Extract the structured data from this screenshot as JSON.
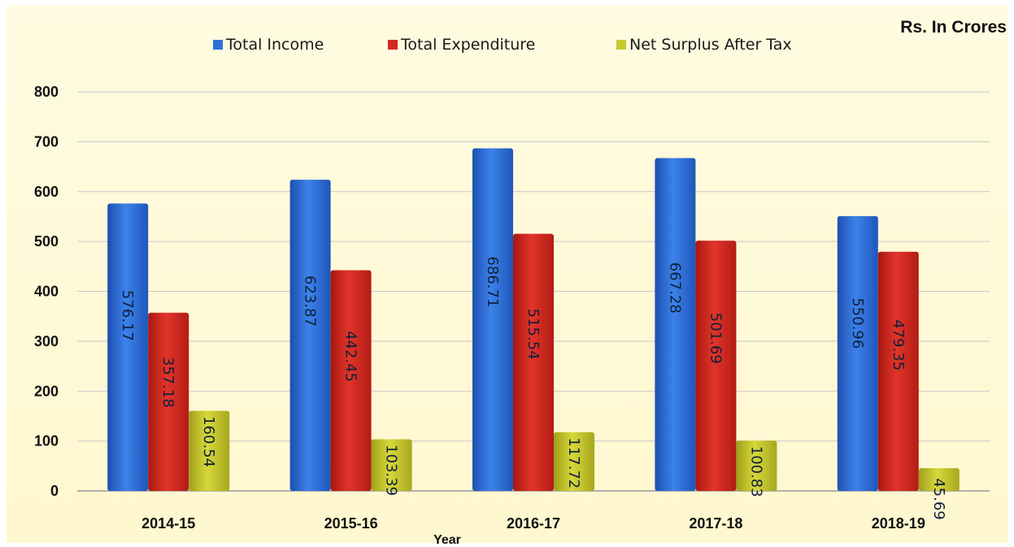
{
  "chart_data": {
    "type": "bar",
    "unit_label": "Rs. In Crores",
    "xlabel": "Year",
    "ylabel": "",
    "ylim": [
      0,
      800
    ],
    "yticks": [
      0,
      100,
      200,
      300,
      400,
      500,
      600,
      700,
      800
    ],
    "grid": true,
    "legend_position": "top-center",
    "categories": [
      "2014-15",
      "2015-16",
      "2016-17",
      "2017-18",
      "2018-19"
    ],
    "series": [
      {
        "name": "Total Income",
        "color": "#2f6fd6",
        "values": [
          576.17,
          623.87,
          686.71,
          667.28,
          550.96
        ],
        "labels": [
          "576.17",
          "623.87",
          "686.71",
          "667.28",
          "550.96"
        ]
      },
      {
        "name": "Total Expenditure",
        "color": "#d42a1e",
        "values": [
          357.18,
          442.45,
          515.54,
          501.69,
          479.35
        ],
        "labels": [
          "357.18",
          "442.45",
          "515.54",
          "501.69",
          "479.35"
        ]
      },
      {
        "name": "Net Surplus After Tax",
        "color": "#c8c92a",
        "values": [
          160.54,
          103.39,
          117.72,
          100.83,
          45.69
        ],
        "labels": [
          "160.54",
          "103.39",
          "117.72",
          "100.83",
          "45.69"
        ]
      }
    ]
  }
}
